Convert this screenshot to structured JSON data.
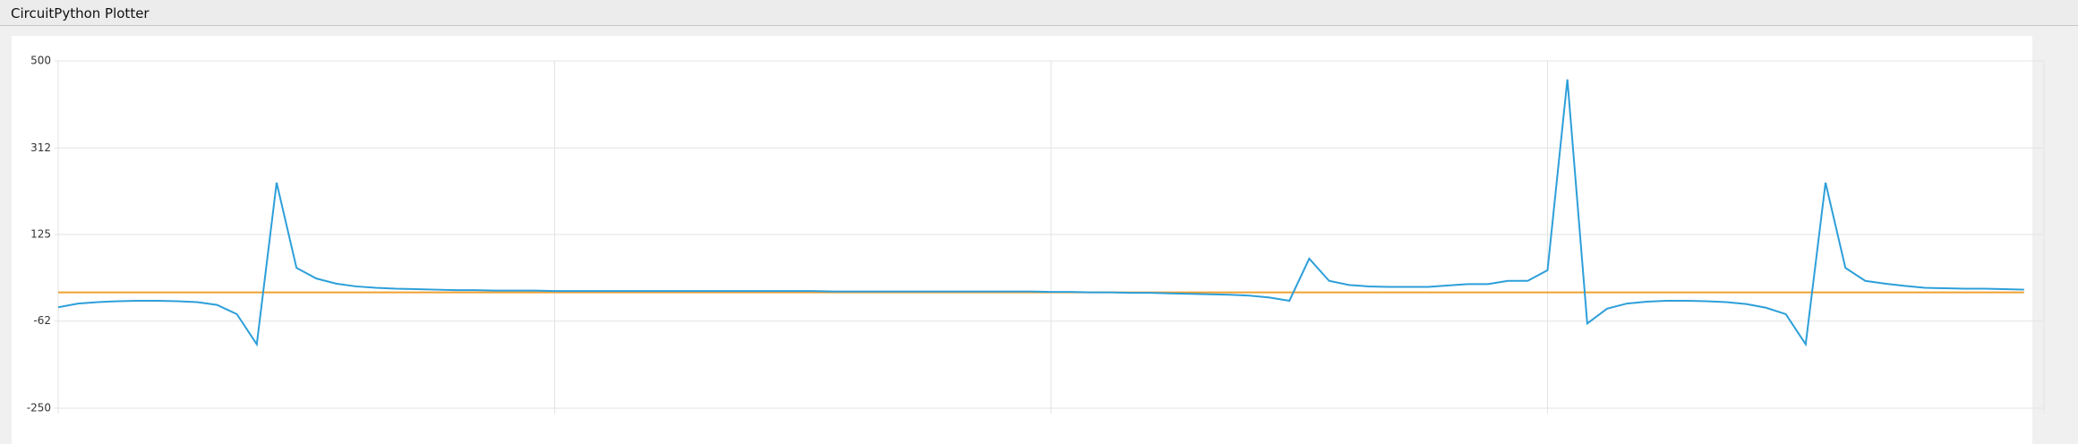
{
  "chart_data": {
    "type": "line",
    "title": "CircuitPython Plotter",
    "ylim": [
      -250,
      500
    ],
    "yticks": [
      500,
      312,
      125,
      -62,
      -250
    ],
    "grid": true,
    "series": [
      {
        "color": "#2d9fd9",
        "values": [
          -32,
          -24,
          -21,
          -19,
          -18,
          -18,
          -19,
          -21,
          -27,
          -47,
          -112,
          237,
          53,
          30,
          19,
          13,
          10,
          8,
          7,
          6,
          5,
          5,
          4,
          4,
          4,
          3,
          3,
          3,
          3,
          3,
          3,
          3,
          3,
          3,
          3,
          3,
          3,
          3,
          3,
          2,
          2,
          2,
          2,
          2,
          2,
          2,
          2,
          2,
          2,
          2,
          1,
          1,
          0,
          0,
          -1,
          -1,
          -2,
          -3,
          -4,
          -5,
          -7,
          -11,
          -18,
          73,
          25,
          16,
          13,
          12,
          12,
          12,
          15,
          18,
          18,
          25,
          25,
          48,
          460,
          -67,
          -35,
          -24,
          -20,
          -18,
          -18,
          -19,
          -21,
          -25,
          -33,
          -47,
          -112,
          237,
          53,
          25,
          19,
          14,
          10,
          9,
          8,
          8,
          7,
          6
        ]
      },
      {
        "color": "#f0a030",
        "values": [
          0,
          0,
          0,
          0,
          0,
          0,
          0,
          0,
          0,
          0,
          0,
          0,
          0,
          0,
          0,
          0,
          0,
          0,
          0,
          0,
          0,
          0,
          0,
          0,
          0,
          0,
          0,
          0,
          0,
          0,
          0,
          0,
          0,
          0,
          0,
          0,
          0,
          0,
          0,
          0,
          0,
          0,
          0,
          0,
          0,
          0,
          0,
          0,
          0,
          0,
          0,
          0,
          0,
          0,
          0,
          0,
          0,
          0,
          0,
          0,
          0,
          0,
          0,
          0,
          0,
          0,
          0,
          0,
          0,
          0,
          0,
          0,
          0,
          0,
          0,
          0,
          0,
          0,
          0,
          0,
          0,
          0,
          0,
          0,
          0,
          0,
          0,
          0,
          0,
          0,
          0,
          0,
          0,
          0,
          0,
          0,
          0,
          0,
          0,
          0
        ]
      }
    ]
  }
}
